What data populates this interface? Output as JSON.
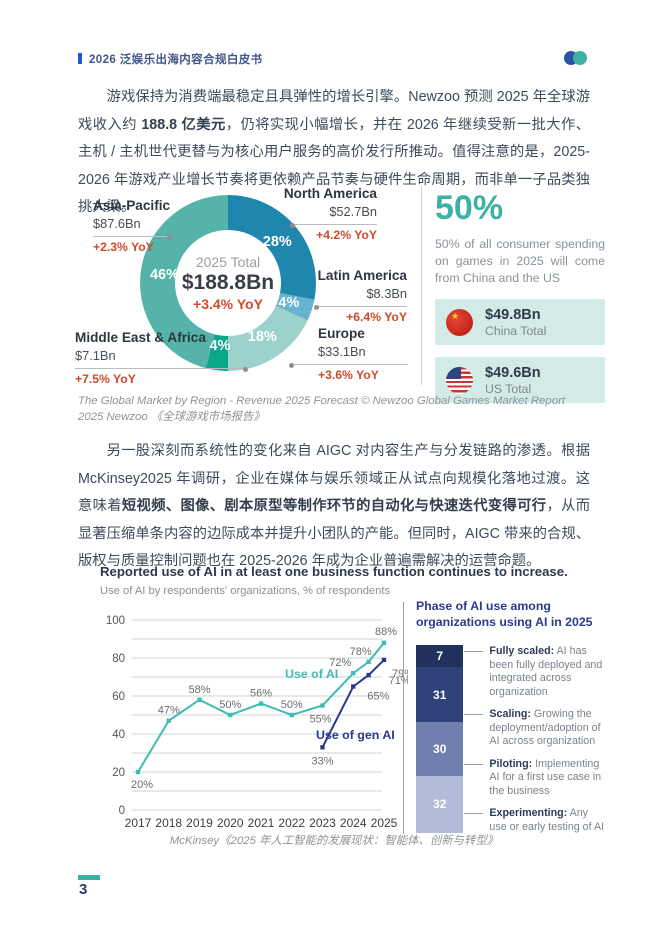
{
  "header": {
    "title": "2026 泛娱乐出海内容合规白皮书",
    "logo_icon": "brand-two-circles-icon"
  },
  "para1": {
    "t1": "游戏保持为消费端最稳定且具弹性的增长引擎。Newzoo 预测 2025 年全球游戏收入约 ",
    "bold": "188.8 亿美元",
    "t2": "，仍将实现小幅增长，并在 2026 年继续受新一批大作、主机 / 主机世代更替与为核心用户服务的高价发行所推动。值得注意的是，2025-2026 年游戏产业增长节奏将更依赖产品节奏与硬件生命周期，而非单一子品类独挑大梁。"
  },
  "caption1": "The Global Market by Region - Revenue 2025 Forecast © Newzoo Global Games Market Report 2025 Newzoo 《全球游戏市场报告》",
  "para2": {
    "t1": "另一股深刻而系统性的变化来自 AIGC 对内容生产与分发链路的渗透。根据 McKinsey2025 年调研，企业在媒体与娱乐领域正从试点向规模化落地过渡。这意味着",
    "bold": "短视频、图像、剧本原型等制作环节的自动化与快速迭代变得可行",
    "t2": "，从而显著压缩单条内容的边际成本并提升小团队的产能。但同时，AIGC 带来的合规、版权与质量控制问题也在 2025-2026 年成为企业普遍需解决的运营命题。"
  },
  "sidebar": {
    "big": "50%",
    "desc": "50% of all consumer spending on games in 2025 will come from China and the US",
    "boxes": [
      {
        "icon": "china-flag-icon",
        "amount": "$49.8Bn",
        "label": "China Total"
      },
      {
        "icon": "us-flag-icon",
        "amount": "$49.6Bn",
        "label": "US Total"
      }
    ]
  },
  "fig2": {
    "title": "Reported use of AI in at least one business function continues to increase.",
    "subtitle": "Use of AI by respondents' organizations, % of respondents",
    "panel_title": "Phase of AI use among organizations using AI in 2025"
  },
  "caption2": "McKinsey《2025 年人工智能的发展现状：智能体、创新与转型》",
  "footer": {
    "page": "3"
  },
  "chart_data": [
    {
      "type": "pie",
      "style": "donut",
      "center": {
        "line1": "2025 Total",
        "line2": "$188.8Bn",
        "line3": "+3.4% YoY"
      },
      "start_angle_deg": 0,
      "clockwise": true,
      "segments": [
        {
          "name": "North America",
          "pct": 28,
          "amount": "$52.7Bn",
          "yoy": "+4.2% YoY",
          "color": "#1f87ad"
        },
        {
          "name": "Latin America",
          "pct": 4,
          "amount": "$8.3Bn",
          "yoy": "+6.4% YoY",
          "color": "#68b2cf"
        },
        {
          "name": "Europe",
          "pct": 18,
          "amount": "$33.1Bn",
          "yoy": "+3.6% YoY",
          "color": "#9cd2cb"
        },
        {
          "name": "Middle East & Africa",
          "pct": 4,
          "amount": "$7.1Bn",
          "yoy": "+7.5% YoY",
          "color": "#0ba78a"
        },
        {
          "name": "Asia-Pacific",
          "pct": 46,
          "amount": "$87.6Bn",
          "yoy": "+2.3% YoY",
          "color": "#55b3aa"
        }
      ]
    },
    {
      "type": "line",
      "ylim": [
        0,
        100
      ],
      "yticks": [
        0,
        20,
        40,
        60,
        80,
        100
      ],
      "grid_step": 10,
      "xticklabels": [
        "2017",
        "2018",
        "2019",
        "2020",
        "2021",
        "2022",
        "2023",
        "2024",
        "2025"
      ],
      "legend_position": "inline",
      "series": [
        {
          "name": "Use of AI",
          "color": "#3fbcb2",
          "x": [
            2017,
            2018,
            2019,
            2020,
            2021,
            2022,
            2023,
            2024,
            2024.5,
            2025
          ],
          "values": [
            20,
            47,
            58,
            50,
            56,
            50,
            55,
            72,
            78,
            88
          ],
          "label_offsets": [
            [
              4,
              16
            ],
            [
              0,
              -7
            ],
            [
              0,
              -7
            ],
            [
              0,
              -7
            ],
            [
              0,
              -7
            ],
            [
              0,
              -7
            ],
            [
              -2,
              17
            ],
            [
              -13,
              -7
            ],
            [
              -8,
              -7
            ],
            [
              2,
              -8
            ]
          ]
        },
        {
          "name": "Use of gen AI",
          "color": "#2b3890",
          "x": [
            2023,
            2024,
            2024.5,
            2025
          ],
          "values": [
            33,
            65,
            71,
            79
          ],
          "label_offsets": [
            [
              0,
              17
            ],
            [
              14,
              13
            ],
            [
              20,
              9
            ],
            [
              8,
              17
            ]
          ]
        }
      ]
    },
    {
      "type": "bar",
      "stacked": true,
      "values": [
        7,
        31,
        30,
        32
      ],
      "colors": [
        "#21325f",
        "#2e4178",
        "#6f80ae",
        "#b2bbd8"
      ],
      "items": [
        {
          "term": "Fully scaled:",
          "desc": " AI has been fully deployed and integrated across organization"
        },
        {
          "term": "Scaling:",
          "desc": " Growing the deployment/adoption of AI across organization"
        },
        {
          "term": "Piloting:",
          "desc": " Implementing AI for a first use case in the business"
        },
        {
          "term": "Experimenting:",
          "desc": " Any use or early testing of AI"
        }
      ]
    }
  ]
}
